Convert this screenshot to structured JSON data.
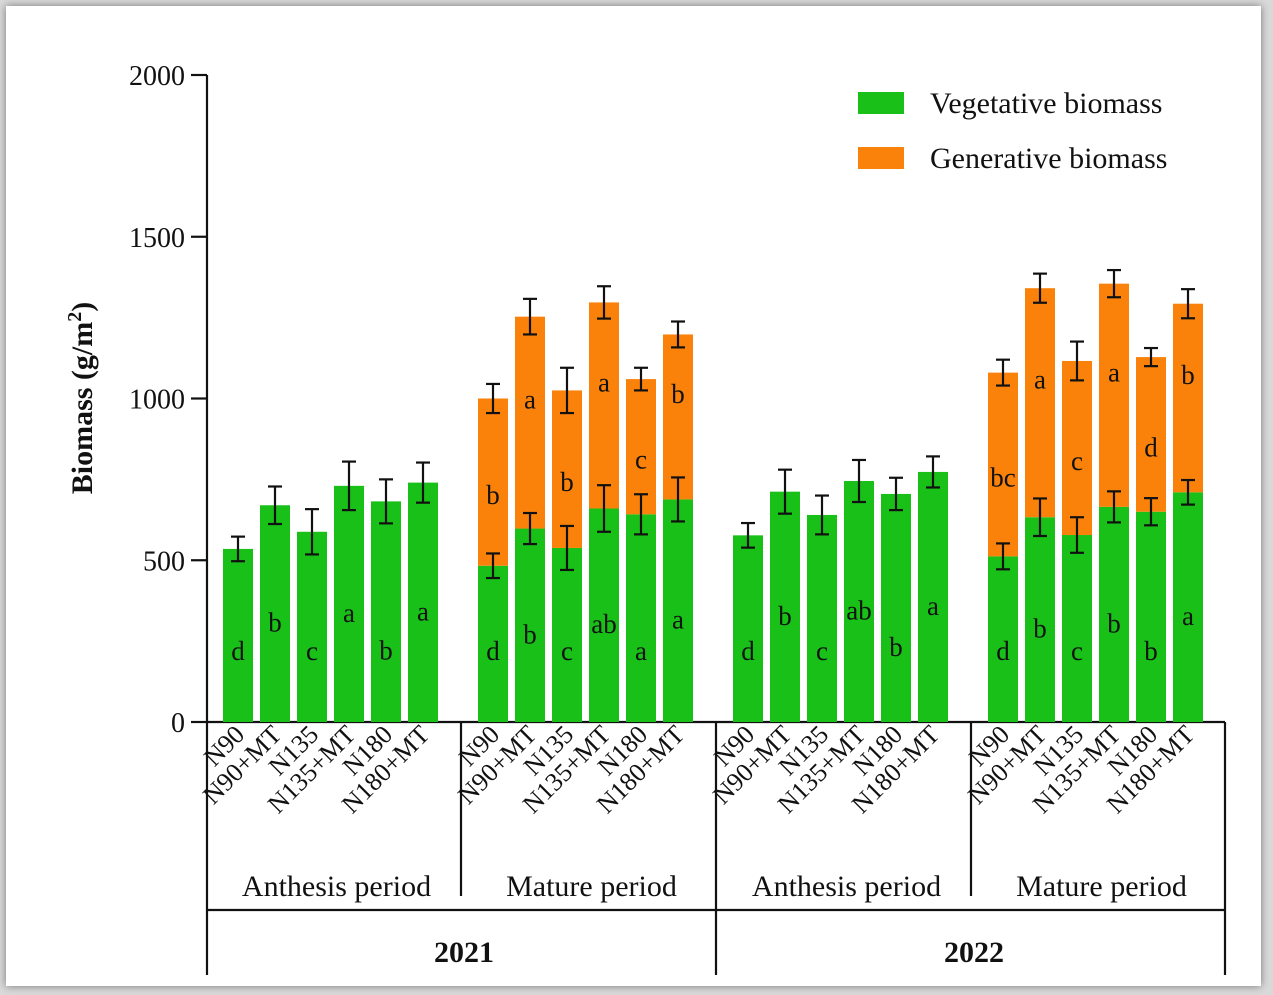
{
  "colors": {
    "vegetative": "#18c018",
    "generative": "#fb820a",
    "axis": "#111111"
  },
  "chart_data": {
    "type": "bar",
    "stacked": true,
    "ylabel": "Biomass (g/m²)",
    "ylabel_parts": {
      "main": "Biomass (g/m",
      "sup": "2",
      "close": ")"
    },
    "ylim": [
      0,
      2000
    ],
    "yticks": [
      "0",
      "500",
      "1000",
      "1500",
      "2000"
    ],
    "legend_position": "top-right",
    "legend": [
      "Vegetative biomass",
      "Generative biomass"
    ],
    "categories": [
      "N90",
      "N90+MT",
      "N135",
      "N135+MT",
      "N180",
      "N180+MT"
    ],
    "groups": [
      {
        "year": "2021",
        "period": "Anthesis period",
        "vegetative": [
          535,
          670,
          588,
          730,
          682,
          740
        ],
        "veg_err": [
          38,
          58,
          70,
          75,
          68,
          62
        ],
        "veg_sig": [
          "d",
          "b",
          "c",
          "a",
          "b",
          "a"
        ],
        "generative": [
          0,
          0,
          0,
          0,
          0,
          0
        ],
        "total_err": [
          0,
          0,
          0,
          0,
          0,
          0
        ],
        "gen_sig": [
          "",
          "",
          "",
          "",
          "",
          ""
        ]
      },
      {
        "year": "2021",
        "period": "Mature period",
        "vegetative": [
          483,
          598,
          538,
          660,
          642,
          688
        ],
        "veg_err": [
          38,
          48,
          68,
          72,
          62,
          68
        ],
        "veg_sig": [
          "d",
          "b",
          "c",
          "ab",
          "a",
          "a"
        ],
        "generative": [
          517,
          655,
          487,
          637,
          418,
          510
        ],
        "total_err": [
          45,
          55,
          70,
          50,
          35,
          40
        ],
        "gen_sig": [
          "b",
          "a",
          "b",
          "a",
          "c",
          "b"
        ]
      },
      {
        "year": "2022",
        "period": "Anthesis period",
        "vegetative": [
          577,
          712,
          640,
          745,
          705,
          773
        ],
        "veg_err": [
          38,
          68,
          60,
          65,
          50,
          48
        ],
        "veg_sig": [
          "d",
          "b",
          "c",
          "ab",
          "b",
          "a"
        ],
        "generative": [
          0,
          0,
          0,
          0,
          0,
          0
        ],
        "total_err": [
          0,
          0,
          0,
          0,
          0,
          0
        ],
        "gen_sig": [
          "",
          "",
          "",
          "",
          "",
          ""
        ]
      },
      {
        "year": "2022",
        "period": "Mature period",
        "vegetative": [
          512,
          633,
          578,
          665,
          650,
          710
        ],
        "veg_err": [
          40,
          58,
          55,
          48,
          42,
          38
        ],
        "veg_sig": [
          "d",
          "b",
          "c",
          "b",
          "b",
          "a"
        ],
        "generative": [
          568,
          708,
          538,
          690,
          478,
          583
        ],
        "total_err": [
          40,
          45,
          60,
          42,
          28,
          45
        ],
        "gen_sig": [
          "bc",
          "a",
          "c",
          "a",
          "d",
          "b"
        ]
      }
    ],
    "years": [
      "2021",
      "2022"
    ]
  }
}
